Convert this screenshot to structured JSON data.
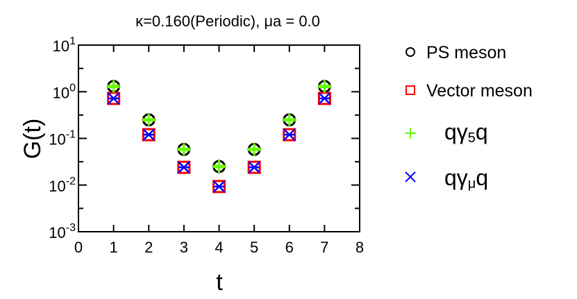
{
  "chart_data": {
    "type": "scatter",
    "title": "κ=0.160(Periodic), μa = 0.0",
    "xlabel": "t",
    "ylabel": "G(t)",
    "xlim": [
      0,
      8
    ],
    "ylim": [
      0.001,
      10
    ],
    "yscale": "log",
    "x_ticks": [
      "0",
      "1",
      "2",
      "3",
      "4",
      "5",
      "6",
      "7",
      "8"
    ],
    "y_ticks": [
      {
        "base": "10",
        "exp": "1"
      },
      {
        "base": "10",
        "exp": "0"
      },
      {
        "base": "10",
        "exp": "-1"
      },
      {
        "base": "10",
        "exp": "-2"
      },
      {
        "base": "10",
        "exp": "-3"
      }
    ],
    "grid": false,
    "legend_position": "right",
    "x": [
      1,
      2,
      3,
      4,
      5,
      6,
      7
    ],
    "series": [
      {
        "name": "PS meson",
        "marker": "circle",
        "color": "#000000",
        "values": [
          1.3,
          0.25,
          0.058,
          0.025,
          0.058,
          0.25,
          1.3
        ]
      },
      {
        "name": "Vector meson",
        "marker": "square",
        "color": "#ff0000",
        "values": [
          0.72,
          0.12,
          0.024,
          0.0093,
          0.024,
          0.12,
          0.72
        ]
      },
      {
        "name": "qγ5q",
        "marker": "plus",
        "color": "#66ff00",
        "values": [
          1.3,
          0.25,
          0.058,
          0.025,
          0.058,
          0.25,
          1.3
        ]
      },
      {
        "name": "qγμq",
        "marker": "x",
        "color": "#0000ff",
        "values": [
          0.72,
          0.12,
          0.024,
          0.0093,
          0.024,
          0.12,
          0.72
        ]
      }
    ]
  },
  "legend": {
    "items": [
      {
        "label": "PS meson"
      },
      {
        "label": "Vector meson"
      },
      {
        "label_main": "qγ",
        "label_sub": "5",
        "label_end": "q"
      },
      {
        "label_main": "qγ",
        "label_sub": "μ",
        "label_end": "q"
      }
    ]
  }
}
